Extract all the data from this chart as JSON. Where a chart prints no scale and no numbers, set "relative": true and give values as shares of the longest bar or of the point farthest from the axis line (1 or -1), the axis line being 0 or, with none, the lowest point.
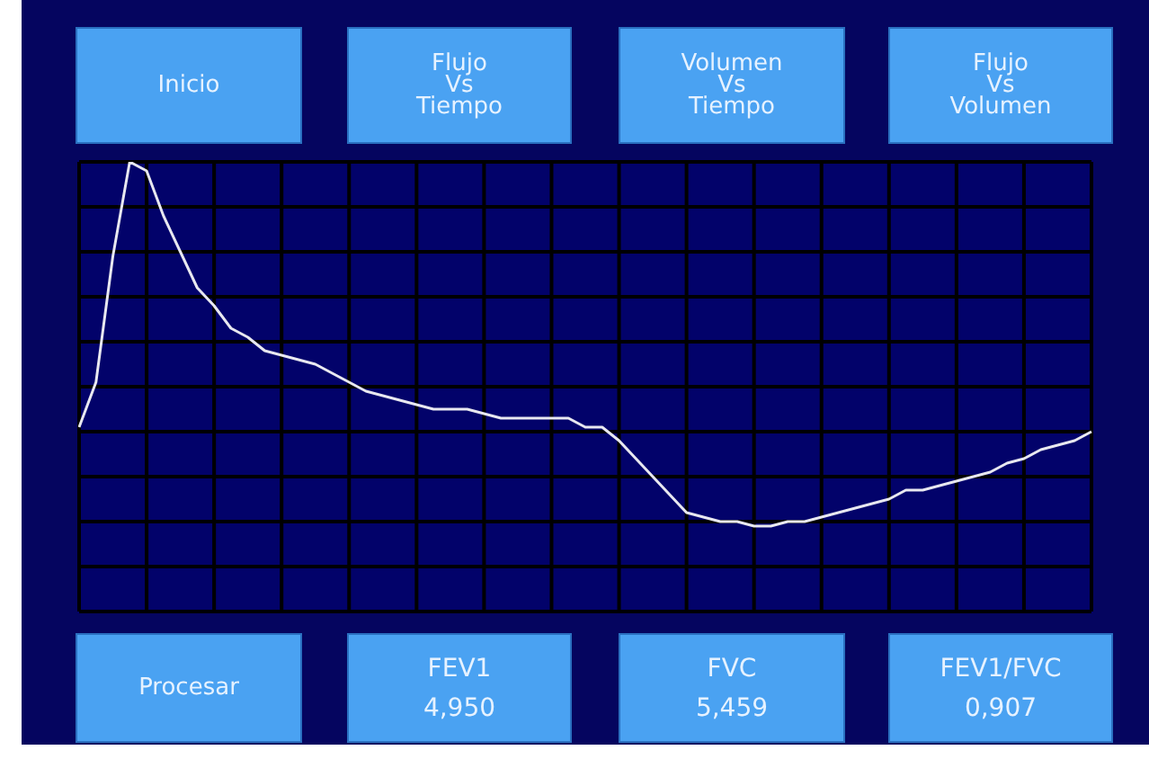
{
  "chart_data": {
    "type": "line",
    "relative": true,
    "grid": true,
    "tick_labels": false,
    "marker": "none",
    "legend": false,
    "categories": [
      null,
      null,
      null,
      null,
      null,
      null,
      null,
      null,
      null,
      null,
      null,
      null,
      null,
      null,
      null,
      null,
      null,
      null,
      null,
      null,
      null,
      null,
      null,
      null,
      null,
      null,
      null,
      null,
      null,
      null,
      null,
      null,
      null,
      null,
      null,
      null,
      null,
      null,
      null,
      null,
      null,
      null,
      null,
      null,
      null,
      null,
      null,
      null,
      null,
      null,
      null,
      null,
      null,
      null,
      null,
      null,
      null,
      null,
      null,
      null,
      null
    ],
    "series": [
      {
        "color": "#e8e8f0",
        "values": [
          0.41,
          0.51,
          0.79,
          1,
          0.98,
          0.88,
          0.8,
          0.72,
          0.68,
          0.63,
          0.61,
          0.58,
          0.57,
          0.56,
          0.55,
          0.53,
          0.51,
          0.49,
          0.48,
          0.47,
          0.46,
          0.45,
          0.45,
          0.45,
          0.44,
          0.43,
          0.43,
          0.43,
          0.43,
          0.43,
          0.41,
          0.41,
          0.38,
          0.34,
          0.3,
          0.26,
          0.22,
          0.21,
          0.2,
          0.2,
          0.19,
          0.19,
          0.2,
          0.2,
          0.21,
          0.22,
          0.23,
          0.24,
          0.25,
          0.27,
          0.27,
          0.28,
          0.29,
          0.3,
          0.31,
          0.33,
          0.34,
          0.36,
          0.37,
          0.38,
          0.4
        ]
      }
    ],
    "annotations": [
      "Inicio",
      "Flujo\nVs\nTiempo",
      "Volumen\nVs\nTiempo",
      "Flujo\nVs\nVolumen",
      "Procesar",
      "FEV1\n4,950",
      "FVC\n5,459",
      "FEV1/FVC\n0,907"
    ]
  }
}
